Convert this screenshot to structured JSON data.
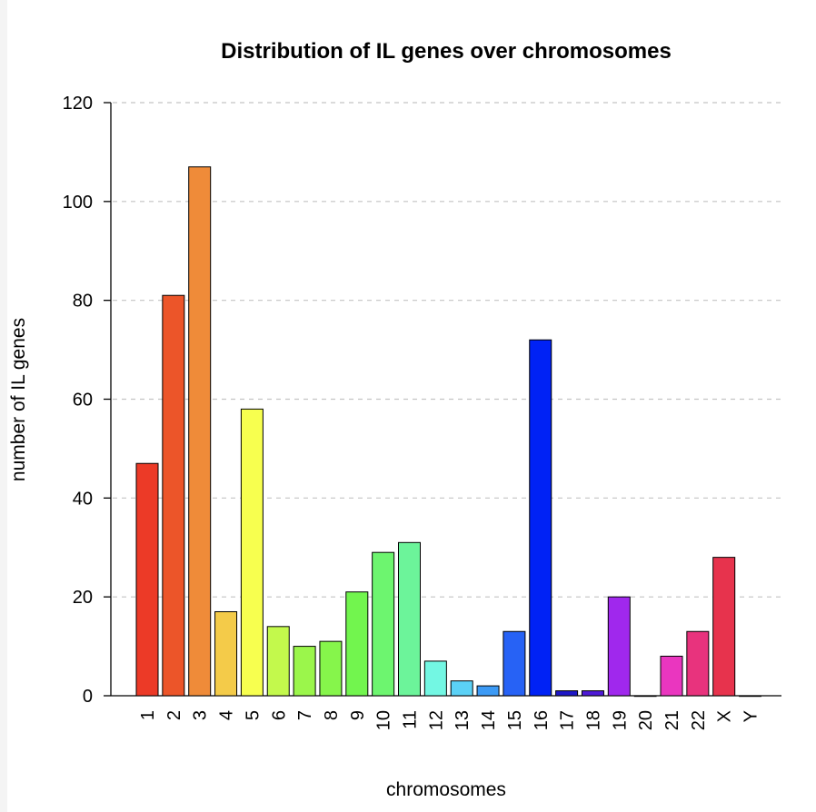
{
  "chart_data": {
    "type": "bar",
    "title": "Distribution of IL genes over chromosomes",
    "xlabel": "chromosomes",
    "ylabel": "number of IL genes",
    "ylim": [
      0,
      120
    ],
    "yticks": [
      0,
      20,
      40,
      60,
      80,
      100,
      120
    ],
    "grid": "horizontal dashed",
    "categories": [
      "1",
      "2",
      "3",
      "4",
      "5",
      "6",
      "7",
      "8",
      "9",
      "10",
      "11",
      "12",
      "13",
      "14",
      "15",
      "16",
      "17",
      "18",
      "19",
      "20",
      "21",
      "22",
      "X",
      "Y"
    ],
    "values": [
      47,
      81,
      107,
      17,
      58,
      14,
      10,
      11,
      21,
      29,
      31,
      7,
      3,
      2,
      13,
      72,
      1,
      1,
      20,
      0,
      8,
      13,
      28,
      0
    ],
    "colors": [
      "#ec3a27",
      "#ec5529",
      "#ef8b39",
      "#f4cb49",
      "#f7ff4f",
      "#c3f94c",
      "#9bf64b",
      "#86f54b",
      "#72f54e",
      "#6df56f",
      "#6cf49a",
      "#73f7e3",
      "#5bd1f6",
      "#3c9af5",
      "#2762f5",
      "#0022f5",
      "#1e17c7",
      "#4e1ad7",
      "#a028ed",
      "#c92fe3",
      "#ea36bf",
      "#e8337d",
      "#e7334d",
      "#ec3340"
    ]
  }
}
